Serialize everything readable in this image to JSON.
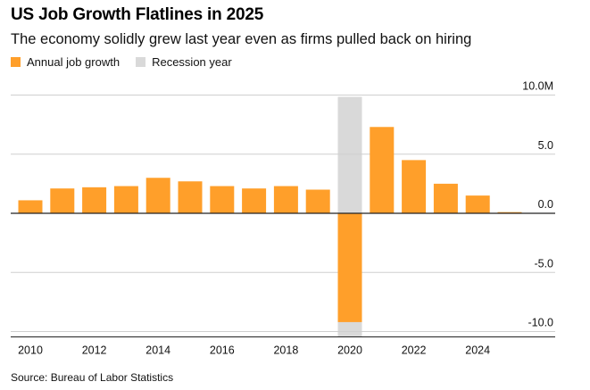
{
  "header": {
    "title": "US Job Growth Flatlines in 2025",
    "subtitle": "The economy solidly grew last year even as firms pulled back on hiring"
  },
  "legend": {
    "items": [
      {
        "label": "Annual job growth",
        "color": "#ff9f2a"
      },
      {
        "label": "Recession year",
        "color": "#d9d9d9"
      }
    ]
  },
  "footer": {
    "source": "Source: Bureau of Labor Statistics"
  },
  "chart_data": {
    "type": "bar",
    "title": "US Job Growth Flatlines in 2025",
    "subtitle": "The economy solidly grew last year even as firms pulled back on hiring",
    "xlabel": "",
    "ylabel": "",
    "categories": [
      "2010",
      "2011",
      "2012",
      "2013",
      "2014",
      "2015",
      "2016",
      "2017",
      "2018",
      "2019",
      "2020",
      "2021",
      "2022",
      "2023",
      "2024",
      "2025"
    ],
    "series": [
      {
        "name": "Annual job growth",
        "color": "#ff9f2a",
        "values": [
          1.1,
          2.1,
          2.2,
          2.3,
          3.0,
          2.7,
          2.3,
          2.1,
          2.3,
          2.0,
          -9.2,
          7.3,
          4.5,
          2.5,
          1.5,
          0.1
        ]
      }
    ],
    "recession_years": [
      "2020"
    ],
    "recession_color": "#d9d9d9",
    "x_tick_labels": [
      "2010",
      "2012",
      "2014",
      "2016",
      "2018",
      "2020",
      "2022",
      "2024"
    ],
    "y_tick_labels": [
      "10.0M",
      "5.0",
      "0.0",
      "-5.0",
      "-10.0"
    ],
    "y_ticks": [
      10,
      5,
      0,
      -5,
      -10
    ],
    "ylim": [
      -10,
      10
    ],
    "grid": true,
    "legend_position": "top-left",
    "y_axis_position": "right"
  }
}
